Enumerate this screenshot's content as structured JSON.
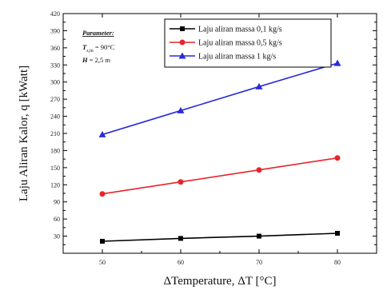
{
  "chart_data": {
    "type": "line",
    "title": "",
    "xlabel": "ΔTemperature, ΔT [°C]",
    "ylabel": "Laju Aliran Kalor, q [kWatt]",
    "x": [
      50,
      60,
      70,
      80
    ],
    "xlim": [
      45,
      85
    ],
    "ylim": [
      0,
      420
    ],
    "yticks": [
      30,
      60,
      90,
      120,
      150,
      180,
      210,
      240,
      270,
      300,
      330,
      360,
      390,
      420
    ],
    "xticks": [
      50,
      60,
      70,
      80
    ],
    "grid": false,
    "legend_position": "top-right",
    "series": [
      {
        "name": "Laju aliran massa 0,1 kg/s",
        "values": [
          21,
          26,
          30,
          35
        ],
        "color": "#000000",
        "marker": "square"
      },
      {
        "name": "Laju aliran massa  0,5 kg/s",
        "values": [
          104,
          125,
          146,
          167
        ],
        "color": "#e8242b",
        "marker": "circle"
      },
      {
        "name": "Laju aliran massa  1 kg/s",
        "values": [
          208,
          250,
          292,
          333
        ],
        "color": "#2b2bd8",
        "marker": "triangle"
      }
    ],
    "annotation": {
      "heading": "Parameter:",
      "line1": "T",
      "line1_sub": "s,in",
      "line1_value": " = 90°C",
      "line2": "H",
      "line2_value": " = 2,5 m"
    }
  }
}
